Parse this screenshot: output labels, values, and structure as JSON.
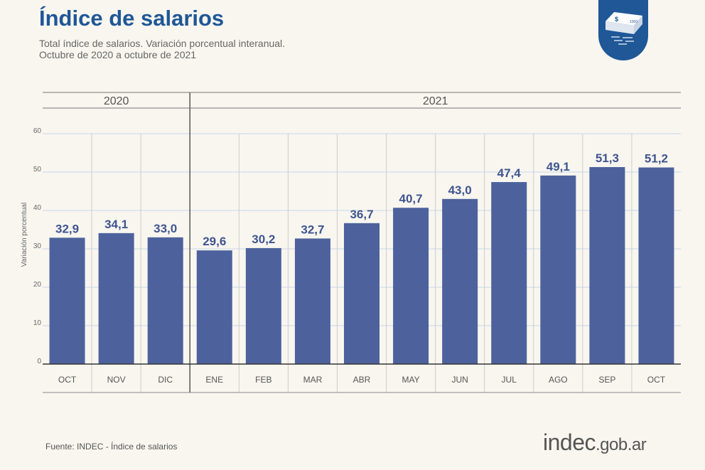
{
  "header": {
    "title": "Índice de salarios",
    "subtitle_line1": "Total índice de salarios. Variación porcentual interanual.",
    "subtitle_line2": "Octubre de 2020 a octubre de 2021",
    "badge_icon": "money-stack-icon"
  },
  "footer": {
    "source": "Fuente: INDEC - Índice de salarios",
    "logo_main": "indec",
    "logo_suffix": ".gob.ar"
  },
  "colors": {
    "bar": "#4d629c",
    "title": "#1f5797",
    "label": "#3f5590"
  },
  "chart_data": {
    "type": "bar",
    "title": "",
    "xlabel": "",
    "ylabel": "Variación porcentual",
    "ylim": [
      0,
      60
    ],
    "yticks": [
      0,
      10,
      20,
      30,
      40,
      50,
      60
    ],
    "grid": true,
    "groups": [
      {
        "label": "2020",
        "count": 3
      },
      {
        "label": "2021",
        "count": 10
      }
    ],
    "categories": [
      "OCT",
      "NOV",
      "DIC",
      "ENE",
      "FEB",
      "MAR",
      "ABR",
      "MAY",
      "JUN",
      "JUL",
      "AGO",
      "SEP",
      "OCT"
    ],
    "values": [
      32.9,
      34.1,
      33.0,
      29.6,
      30.2,
      32.7,
      36.7,
      40.7,
      43.0,
      47.4,
      49.1,
      51.3,
      51.2
    ],
    "data_labels": [
      "32,9",
      "34,1",
      "33,0",
      "29,6",
      "30,2",
      "32,7",
      "36,7",
      "40,7",
      "43,0",
      "47,4",
      "49,1",
      "51,3",
      "51,2"
    ]
  }
}
